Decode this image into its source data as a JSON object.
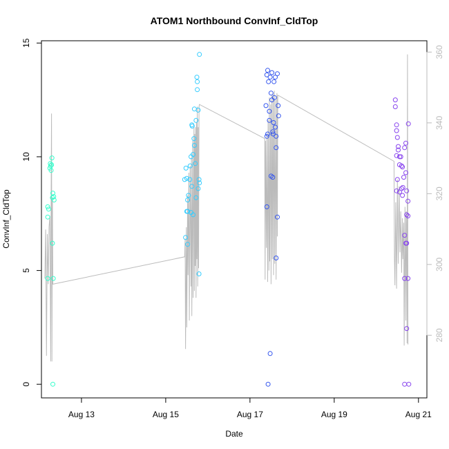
{
  "chart_data": {
    "type": "scatter",
    "title": "ATOM1 Northbound ConvInf_CldTop",
    "xlabel": "Date",
    "ylabel": "ConvInf_CldTop",
    "x_ticks": [
      {
        "day": 13,
        "label": "Aug 13"
      },
      {
        "day": 15,
        "label": "Aug 15"
      },
      {
        "day": 17,
        "label": "Aug 17"
      },
      {
        "day": 19,
        "label": "Aug 19"
      },
      {
        "day": 21,
        "label": "Aug 21"
      }
    ],
    "y_ticks": [
      0,
      5,
      10,
      15
    ],
    "y2_ticks": [
      280,
      300,
      320,
      340,
      360
    ],
    "xlim": [
      12.05,
      21.2
    ],
    "ylim": [
      -0.6,
      15.1
    ],
    "y2lim": [
      262.3,
      363.2
    ],
    "colors": {
      "group1": "#33ffcc",
      "group2": "#33ccff",
      "group3": "#3355ee",
      "group4": "#8844ee",
      "line": "#bbbbbb",
      "axis": "#000000",
      "axis_right": "#bbbbbb"
    },
    "groups": [
      {
        "color_key": "group1",
        "points": [
          [
            12.2,
            7.8
          ],
          [
            12.22,
            7.7
          ],
          [
            12.2,
            7.35
          ],
          [
            12.25,
            9.5
          ],
          [
            12.27,
            9.6
          ],
          [
            12.28,
            9.4
          ],
          [
            12.26,
            9.7
          ],
          [
            12.3,
            9.95
          ],
          [
            12.29,
            9.65
          ],
          [
            12.32,
            8.4
          ],
          [
            12.31,
            8.2
          ],
          [
            12.35,
            8.1
          ],
          [
            12.34,
            8.25
          ],
          [
            12.31,
            6.2
          ],
          [
            12.2,
            4.65
          ],
          [
            12.33,
            4.65
          ],
          [
            12.32,
            0
          ]
        ]
      },
      {
        "color_key": "group2",
        "points": [
          [
            15.45,
            9.0
          ],
          [
            15.48,
            9.5
          ],
          [
            15.5,
            9.05
          ],
          [
            15.47,
            6.45
          ],
          [
            15.52,
            6.15
          ],
          [
            15.52,
            8.1
          ],
          [
            15.54,
            8.3
          ],
          [
            15.5,
            7.6
          ],
          [
            15.52,
            7.6
          ],
          [
            15.57,
            9.0
          ],
          [
            15.58,
            9.6
          ],
          [
            15.6,
            10.0
          ],
          [
            15.62,
            11.4
          ],
          [
            15.63,
            11.35
          ],
          [
            15.65,
            10.1
          ],
          [
            15.62,
            8.7
          ],
          [
            15.6,
            7.55
          ],
          [
            15.65,
            7.45
          ],
          [
            15.67,
            10.8
          ],
          [
            15.68,
            10.5
          ],
          [
            15.68,
            12.1
          ],
          [
            15.7,
            9.7
          ],
          [
            15.72,
            11.6
          ],
          [
            15.72,
            8.2
          ],
          [
            15.74,
            13.5
          ],
          [
            15.75,
            13.3
          ],
          [
            15.75,
            12.95
          ],
          [
            15.77,
            12.05
          ],
          [
            15.77,
            8.6
          ],
          [
            15.79,
            9.0
          ],
          [
            15.8,
            8.85
          ],
          [
            15.8,
            14.5
          ],
          [
            15.79,
            4.85
          ]
        ]
      },
      {
        "color_key": "group3",
        "points": [
          [
            17.38,
            12.25
          ],
          [
            17.4,
            13.6
          ],
          [
            17.42,
            13.8
          ],
          [
            17.4,
            10.9
          ],
          [
            17.42,
            11.0
          ],
          [
            17.44,
            13.3
          ],
          [
            17.46,
            11.6
          ],
          [
            17.46,
            12.0
          ],
          [
            17.48,
            13.5
          ],
          [
            17.5,
            12.8
          ],
          [
            17.52,
            12.5
          ],
          [
            17.52,
            13.7
          ],
          [
            17.54,
            11.1
          ],
          [
            17.55,
            11.0
          ],
          [
            17.56,
            11.5
          ],
          [
            17.57,
            13.3
          ],
          [
            17.6,
            13.5
          ],
          [
            17.58,
            12.6
          ],
          [
            17.6,
            11.3
          ],
          [
            17.62,
            10.4
          ],
          [
            17.62,
            10.9
          ],
          [
            17.65,
            13.65
          ],
          [
            17.67,
            12.25
          ],
          [
            17.68,
            11.8
          ],
          [
            17.5,
            9.15
          ],
          [
            17.54,
            9.1
          ],
          [
            17.4,
            7.8
          ],
          [
            17.65,
            7.35
          ],
          [
            17.62,
            5.55
          ],
          [
            17.48,
            1.35
          ],
          [
            17.43,
            0
          ]
        ]
      },
      {
        "color_key": "group4",
        "points": [
          [
            20.45,
            12.5
          ],
          [
            20.45,
            12.2
          ],
          [
            20.48,
            11.4
          ],
          [
            20.48,
            11.15
          ],
          [
            20.5,
            10.85
          ],
          [
            20.52,
            10.3
          ],
          [
            20.48,
            10.05
          ],
          [
            20.52,
            10.45
          ],
          [
            20.55,
            10.0
          ],
          [
            20.58,
            10.0
          ],
          [
            20.55,
            9.65
          ],
          [
            20.6,
            9.6
          ],
          [
            20.62,
            9.55
          ],
          [
            20.5,
            9.0
          ],
          [
            20.48,
            8.5
          ],
          [
            20.55,
            8.45
          ],
          [
            20.6,
            8.6
          ],
          [
            20.63,
            8.65
          ],
          [
            20.65,
            9.1
          ],
          [
            20.62,
            8.3
          ],
          [
            20.67,
            10.4
          ],
          [
            20.7,
            10.6
          ],
          [
            20.7,
            9.3
          ],
          [
            20.72,
            8.5
          ],
          [
            20.76,
            11.45
          ],
          [
            20.75,
            8.05
          ],
          [
            20.72,
            7.45
          ],
          [
            20.75,
            7.4
          ],
          [
            20.67,
            6.55
          ],
          [
            20.7,
            6.2
          ],
          [
            20.72,
            6.2
          ],
          [
            20.67,
            4.65
          ],
          [
            20.75,
            4.65
          ],
          [
            20.72,
            2.45
          ],
          [
            20.67,
            0
          ],
          [
            20.77,
            0
          ]
        ]
      }
    ],
    "line_series": [
      [
        12.13,
        4.65
      ],
      [
        12.15,
        6.8
      ],
      [
        12.17,
        1.25
      ],
      [
        12.19,
        6.6
      ],
      [
        12.21,
        4.4
      ],
      [
        12.23,
        6.9
      ],
      [
        12.25,
        7.4
      ],
      [
        12.27,
        1.0
      ],
      [
        12.28,
        8.2
      ],
      [
        12.29,
        11.9
      ],
      [
        12.3,
        1.0
      ],
      [
        12.31,
        8.2
      ],
      [
        12.32,
        4.4
      ],
      [
        15.45,
        5.6
      ],
      [
        15.46,
        6.4
      ],
      [
        15.47,
        1.55
      ],
      [
        15.49,
        6.9
      ],
      [
        15.5,
        2.5
      ],
      [
        15.52,
        8.3
      ],
      [
        15.53,
        4.8
      ],
      [
        15.55,
        9.3
      ],
      [
        15.56,
        2.8
      ],
      [
        15.58,
        9.6
      ],
      [
        15.6,
        4.3
      ],
      [
        15.61,
        10.0
      ],
      [
        15.62,
        3.0
      ],
      [
        15.64,
        10.7
      ],
      [
        15.65,
        3.8
      ],
      [
        15.67,
        11.3
      ],
      [
        15.68,
        4.1
      ],
      [
        15.69,
        11.0
      ],
      [
        15.7,
        5.2
      ],
      [
        15.71,
        11.3
      ],
      [
        15.72,
        3.8
      ],
      [
        15.73,
        11.5
      ],
      [
        15.74,
        5.5
      ],
      [
        15.75,
        12.2
      ],
      [
        15.76,
        4.3
      ],
      [
        15.77,
        11.3
      ],
      [
        15.78,
        5.1
      ],
      [
        15.79,
        12.2
      ],
      [
        15.8,
        12.3
      ],
      [
        17.35,
        10.8
      ],
      [
        17.36,
        4.6
      ],
      [
        17.37,
        10.7
      ],
      [
        17.39,
        6.0
      ],
      [
        17.4,
        11.0
      ],
      [
        17.42,
        4.5
      ],
      [
        17.43,
        11.6
      ],
      [
        17.45,
        5.0
      ],
      [
        17.46,
        12.6
      ],
      [
        17.47,
        5.4
      ],
      [
        17.49,
        12.3
      ],
      [
        17.5,
        4.4
      ],
      [
        17.52,
        12.7
      ],
      [
        17.53,
        5.5
      ],
      [
        17.55,
        12.8
      ],
      [
        17.56,
        4.8
      ],
      [
        17.58,
        12.9
      ],
      [
        17.59,
        5.3
      ],
      [
        17.61,
        12.5
      ],
      [
        17.62,
        4.6
      ],
      [
        17.64,
        12.8
      ],
      [
        17.65,
        6.5
      ],
      [
        17.66,
        12.7
      ],
      [
        17.67,
        12.7
      ],
      [
        20.42,
        9.8
      ],
      [
        20.43,
        5.6
      ],
      [
        20.44,
        4.35
      ],
      [
        20.46,
        8.0
      ],
      [
        20.48,
        4.2
      ],
      [
        20.5,
        9.0
      ],
      [
        20.52,
        5.3
      ],
      [
        20.54,
        8.7
      ],
      [
        20.56,
        5.8
      ],
      [
        20.58,
        7.6
      ],
      [
        20.6,
        4.9
      ],
      [
        20.62,
        7.3
      ],
      [
        20.63,
        5.5
      ],
      [
        20.65,
        7.1
      ],
      [
        20.66,
        1.7
      ],
      [
        20.68,
        7.8
      ],
      [
        20.7,
        2.8
      ],
      [
        20.71,
        7.6
      ],
      [
        20.72,
        6.8
      ],
      [
        20.73,
        1.8
      ],
      [
        20.74,
        14.5
      ],
      [
        20.75,
        1.75
      ]
    ]
  }
}
